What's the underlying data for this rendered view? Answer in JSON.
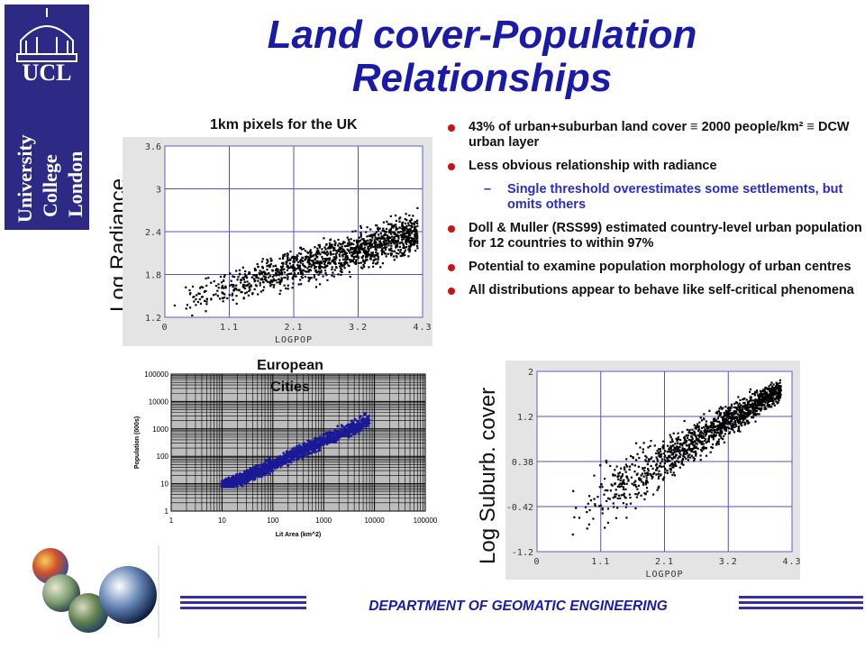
{
  "logo": {
    "text": "UCL",
    "vertical_text": [
      "University",
      "College",
      "London"
    ]
  },
  "title": {
    "line1": "Land cover-Population",
    "line2": "Relationships"
  },
  "uk_plot": {
    "caption": "1km pixels for the UK",
    "ylabel": "Log Radiance"
  },
  "suburb_plot": {
    "ylabel": "Log Suburb. cover"
  },
  "european_plot": {
    "title": "European Cities"
  },
  "bullets": [
    {
      "text": "43% of urban+suburban land cover ≡ 2000 people/km² ≡ DCW urban layer"
    },
    {
      "text": "Less obvious relationship with radiance"
    },
    {
      "text": "Single threshold overestimates some settlements, but omits others",
      "sub": true,
      "marker": "–"
    },
    {
      "text": "Doll & Muller (RSS99) estimated country-level urban population for 12 countries to within  97%"
    },
    {
      "text": "Potential to examine population morphology of urban centres"
    },
    {
      "text": "All distributions appear to behave like self-critical phenomena"
    }
  ],
  "footer": {
    "text": "DEPARTMENT OF GEOMATIC ENGINEERING"
  },
  "colors": {
    "title": "#1a1aa8",
    "bullet": "#cc1111",
    "sub_bullet_text": "#2c2cc8",
    "logo_bg": "#2d2a86",
    "scatter_euro": "#1a1a96",
    "footer_bars": "#3a2fa0"
  },
  "chart_data": [
    {
      "type": "scatter",
      "title": "",
      "xlabel": "LOGPOP",
      "ylabel": "Log Radiance",
      "xticks": [
        "0",
        "1.1",
        "2.1",
        "3.2",
        "4.3"
      ],
      "yticks": [
        "1.2",
        "1.8",
        "2.4",
        "3",
        "3.6"
      ],
      "xlim": [
        0,
        4.3
      ],
      "ylim": [
        1.2,
        3.6
      ],
      "grid": true,
      "trend": {
        "x_start": 0.1,
        "x_end": 4.2,
        "y_start": 1.4,
        "y_end": 2.4
      }
    },
    {
      "type": "scatter",
      "title": "European Cities",
      "xlabel": "Lit Area (km^2)",
      "ylabel": "Population (000s)",
      "xticks": [
        "1",
        "10",
        "100",
        "1000",
        "10000",
        "100000"
      ],
      "yticks": [
        "1",
        "10",
        "100",
        "1000",
        "10000",
        "100000"
      ],
      "xscale": "log",
      "yscale": "log",
      "xlim": [
        1,
        100000
      ],
      "ylim": [
        1,
        100000
      ],
      "grid": true
    },
    {
      "type": "scatter",
      "title": "",
      "xlabel": "LOGPOP",
      "ylabel": "Log Suburb. cover",
      "xticks": [
        "0",
        "1.1",
        "2.1",
        "3.2",
        "4.3"
      ],
      "yticks": [
        "-1.2",
        "-0.42",
        "0.38",
        "1.2",
        "2"
      ],
      "xlim": [
        0,
        4.3
      ],
      "ylim": [
        -1.2,
        2
      ],
      "grid": true,
      "trend": {
        "x_start": 0.5,
        "x_end": 4.1,
        "y_start": -0.6,
        "y_end": 1.7
      }
    }
  ]
}
